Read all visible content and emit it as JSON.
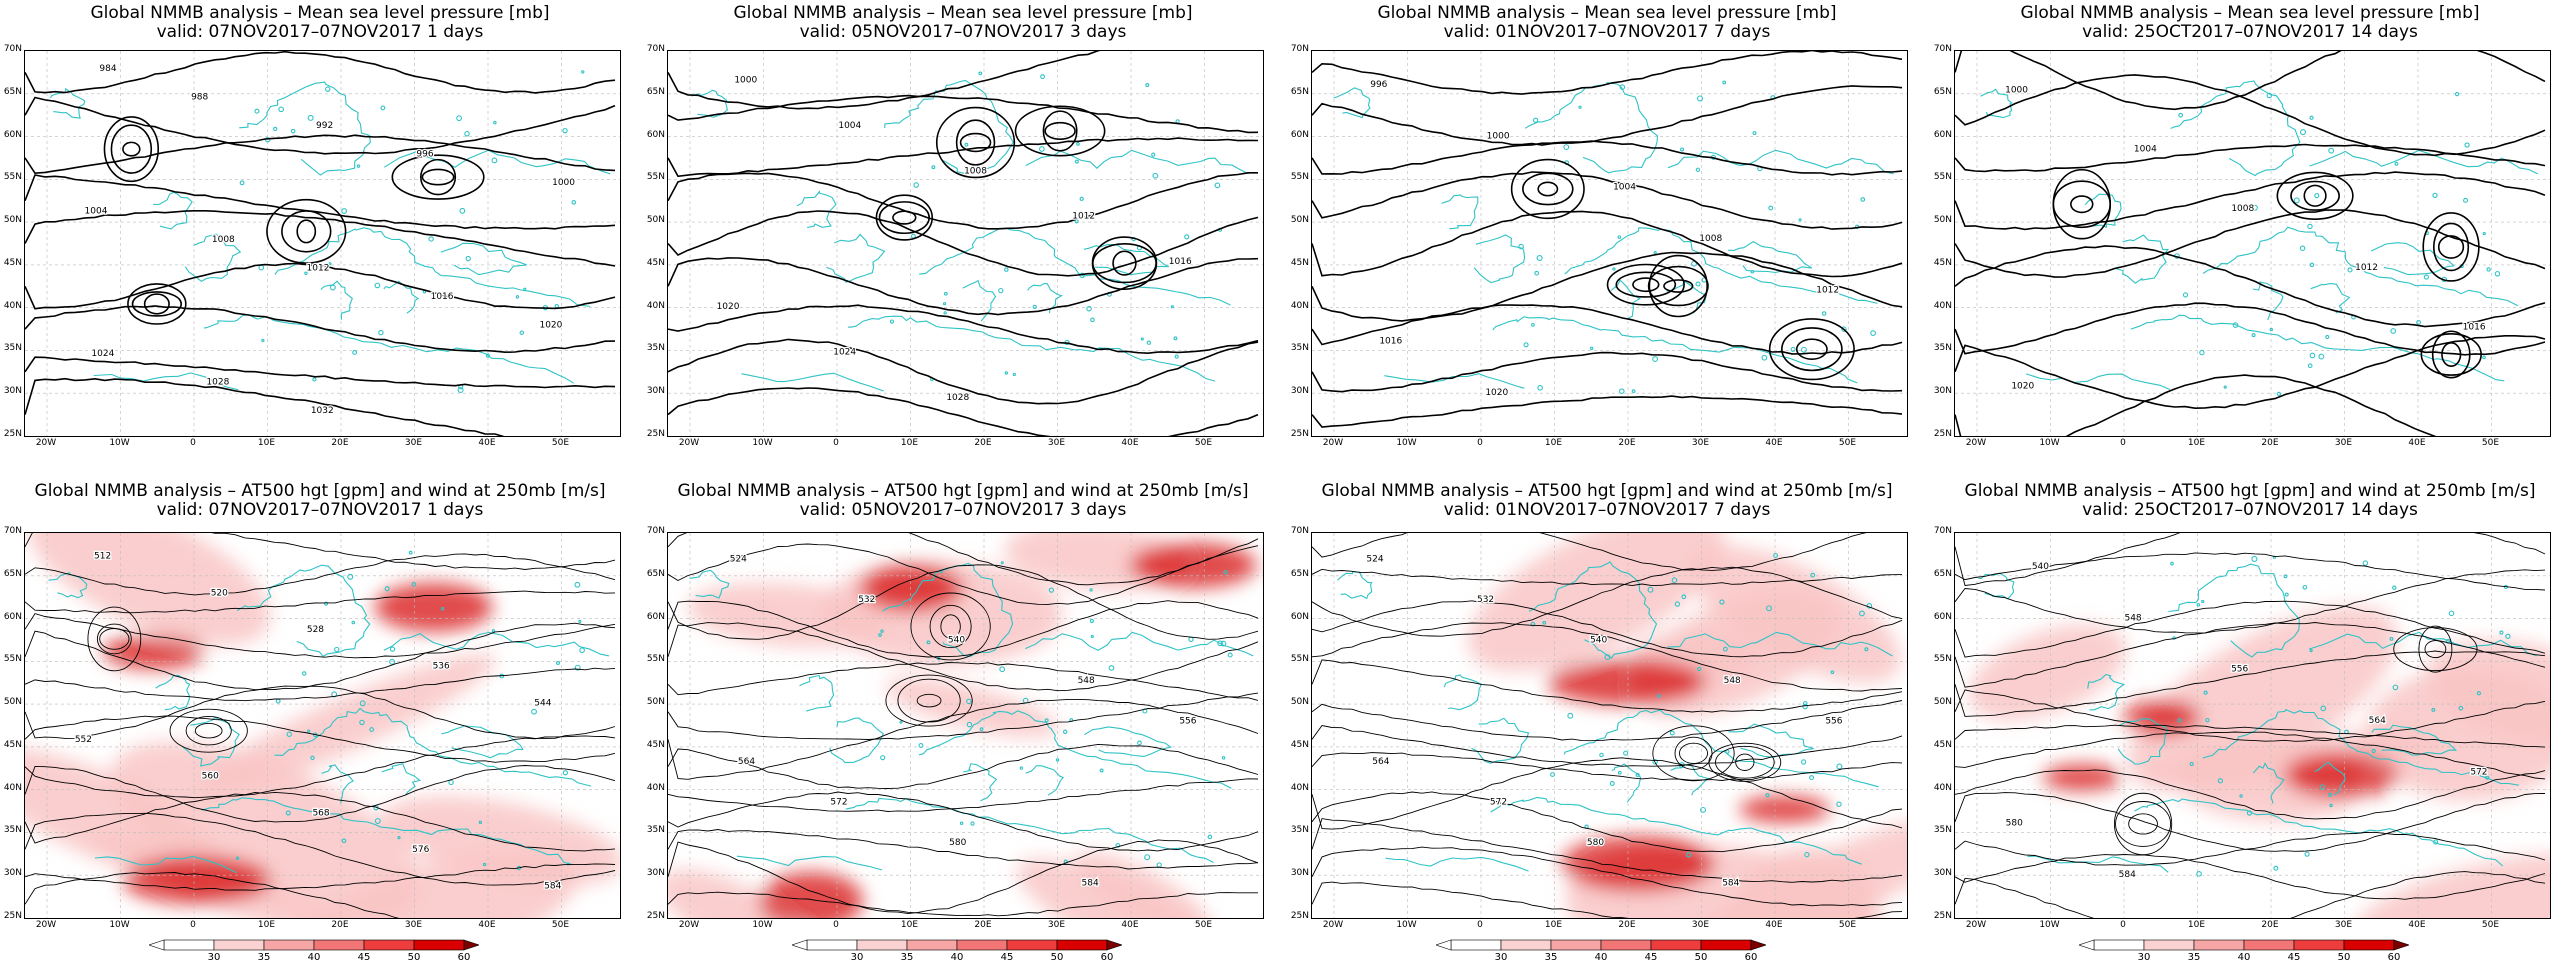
{
  "panels": [
    {
      "title": "Global NMMB analysis – Mean sea level pressure [mb]",
      "subtitle": "valid: 07NOV2017–07NOV2017   1 days",
      "type": "mslp",
      "contour_labels": [
        "984",
        "988",
        "992",
        "996",
        "1000",
        "1004",
        "1008",
        "1012",
        "1016",
        "1020",
        "1024",
        "1028",
        "1032"
      ]
    },
    {
      "title": "Global NMMB analysis – Mean sea level pressure [mb]",
      "subtitle": "valid: 05NOV2017–07NOV2017   3 days",
      "type": "mslp",
      "contour_labels": [
        "1000",
        "1004",
        "1008",
        "1012",
        "1016",
        "1020",
        "1024",
        "1028"
      ]
    },
    {
      "title": "Global NMMB analysis – Mean sea level pressure [mb]",
      "subtitle": "valid: 01NOV2017–07NOV2017   7 days",
      "type": "mslp",
      "contour_labels": [
        "996",
        "1000",
        "1004",
        "1008",
        "1012",
        "1016",
        "1020"
      ]
    },
    {
      "title": "Global NMMB analysis – Mean sea level pressure [mb]",
      "subtitle": "valid: 25OCT2017–07NOV2017   14 days",
      "type": "mslp",
      "contour_labels": [
        "1000",
        "1004",
        "1008",
        "1012",
        "1016",
        "1020"
      ]
    },
    {
      "title": "Global NMMB analysis – AT500 hgt [gpm] and wind at 250mb [m/s]",
      "subtitle": "valid: 07NOV2017–07NOV2017   1 days",
      "type": "wind",
      "contour_labels": [
        "512",
        "520",
        "528",
        "536",
        "544",
        "552",
        "560",
        "568",
        "576",
        "584"
      ]
    },
    {
      "title": "Global NMMB analysis – AT500 hgt [gpm] and wind at 250mb [m/s]",
      "subtitle": "valid: 05NOV2017–07NOV2017   3 days",
      "type": "wind",
      "contour_labels": [
        "524",
        "532",
        "540",
        "548",
        "556",
        "564",
        "572",
        "580",
        "584"
      ]
    },
    {
      "title": "Global NMMB analysis – AT500 hgt [gpm] and wind at 250mb [m/s]",
      "subtitle": "valid: 01NOV2017–07NOV2017   7 days",
      "type": "wind",
      "contour_labels": [
        "524",
        "532",
        "540",
        "548",
        "556",
        "564",
        "572",
        "580",
        "584"
      ]
    },
    {
      "title": "Global NMMB analysis – AT500 hgt [gpm] and wind at 250mb [m/s]",
      "subtitle": "valid: 25OCT2017–07NOV2017   14 days",
      "type": "wind",
      "contour_labels": [
        "540",
        "548",
        "556",
        "564",
        "572",
        "580",
        "584"
      ]
    }
  ],
  "axes": {
    "lat_labels": [
      "70N",
      "65N",
      "60N",
      "55N",
      "50N",
      "45N",
      "40N",
      "35N",
      "30N",
      "25N"
    ],
    "lon_labels": [
      "20W",
      "10W",
      "0",
      "10E",
      "20E",
      "30E",
      "40E",
      "50E"
    ]
  },
  "colorbar": {
    "labels": [
      "30",
      "35",
      "40",
      "45",
      "50",
      "60"
    ],
    "colors": [
      "#ffffff",
      "#fbd2d2",
      "#f7a6a6",
      "#f37676",
      "#ee3d3d",
      "#d80000",
      "#7a0000"
    ]
  },
  "colors": {
    "coast": "#2fc3c6",
    "contour": "#000000",
    "wind_low": "#f9c6c6",
    "wind_high": "#d40000"
  }
}
